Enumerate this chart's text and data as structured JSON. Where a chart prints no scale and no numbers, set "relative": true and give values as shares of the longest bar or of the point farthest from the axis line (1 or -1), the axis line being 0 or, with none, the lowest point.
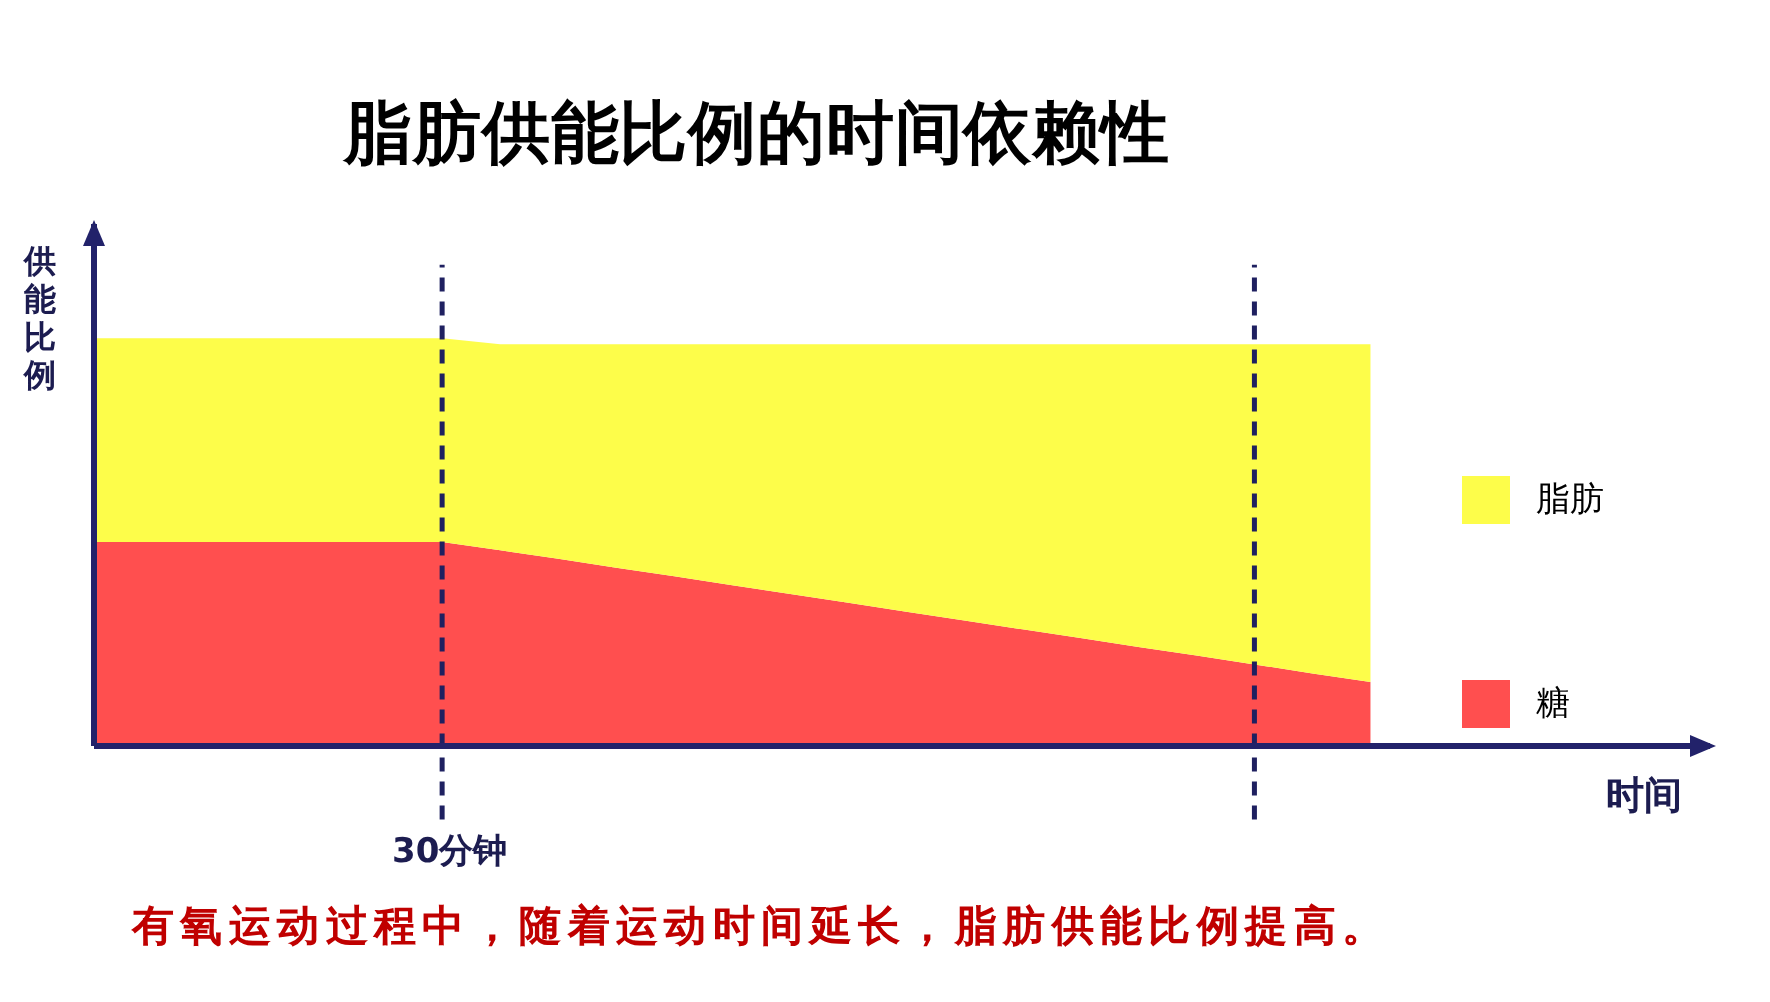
{
  "chart_data": {
    "type": "area",
    "title": "脂肪供能比例的时间依赖性",
    "ylabel": "供能比例",
    "annotations": [
      "时间",
      "30分钟",
      "有氧运动过程中，随着运动时间延长，脂肪供能比例提高。"
    ],
    "categories": [
      null,
      null,
      null,
      null,
      null,
      null,
      null,
      null,
      null,
      null,
      null,
      null,
      null,
      null,
      null,
      null,
      null,
      null,
      null,
      null,
      null,
      null,
      null
    ],
    "relative": true,
    "stacked": true,
    "series": [
      {
        "name": "糖",
        "color": "#ff4f4f",
        "values": [
          0.5,
          0.5,
          0.5,
          0.5,
          0.5,
          0.5,
          0.5,
          0.48,
          0.459,
          0.437,
          0.416,
          0.394,
          0.373,
          0.351,
          0.329,
          0.308,
          0.286,
          0.265,
          0.243,
          0.222,
          0.2,
          0.178,
          0.157
        ]
      },
      {
        "name": "脂肪",
        "color": "#fdfd4a",
        "values": [
          0.5,
          0.5,
          0.5,
          0.5,
          0.5,
          0.5,
          0.5,
          0.505,
          0.526,
          0.548,
          0.569,
          0.591,
          0.612,
          0.634,
          0.656,
          0.677,
          0.699,
          0.72,
          0.742,
          0.763,
          0.785,
          0.807,
          0.828
        ]
      }
    ],
    "legend": "right"
  }
}
